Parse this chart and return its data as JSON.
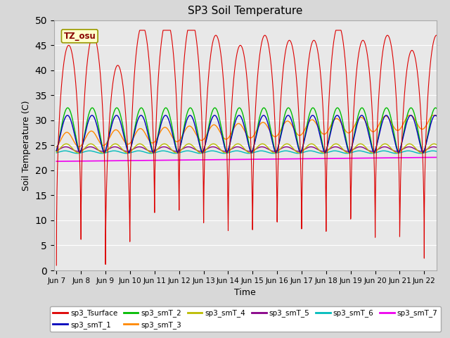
{
  "title": "SP3 Soil Temperature",
  "xlabel": "Time",
  "ylabel": "Soil Temperature (C)",
  "ylim": [
    0,
    50
  ],
  "yticks": [
    0,
    5,
    10,
    15,
    20,
    25,
    30,
    35,
    40,
    45,
    50
  ],
  "tz_label": "TZ_osu",
  "fig_facecolor": "#d8d8d8",
  "ax_facecolor": "#e8e8e8",
  "legend_entries": [
    {
      "label": "sp3_Tsurface",
      "color": "#dd0000"
    },
    {
      "label": "sp3_smT_1",
      "color": "#0000bb"
    },
    {
      "label": "sp3_smT_2",
      "color": "#00bb00"
    },
    {
      "label": "sp3_smT_3",
      "color": "#ff8800"
    },
    {
      "label": "sp3_smT_4",
      "color": "#bbbb00"
    },
    {
      "label": "sp3_smT_5",
      "color": "#880088"
    },
    {
      "label": "sp3_smT_6",
      "color": "#00bbbb"
    },
    {
      "label": "sp3_smT_7",
      "color": "#ee00ee"
    }
  ],
  "xtick_labels": [
    "Jun 7",
    "Jun 8",
    "Jun 9",
    "Jun 10",
    "Jun 11",
    "Jun 12",
    "Jun 13",
    "Jun 14",
    "Jun 15",
    "Jun 16",
    "Jun 17",
    "Jun 18",
    "Jun 19",
    "Jun 20",
    "Jun 21",
    "Jun 22"
  ],
  "num_days": 15.5,
  "points_per_day": 144
}
